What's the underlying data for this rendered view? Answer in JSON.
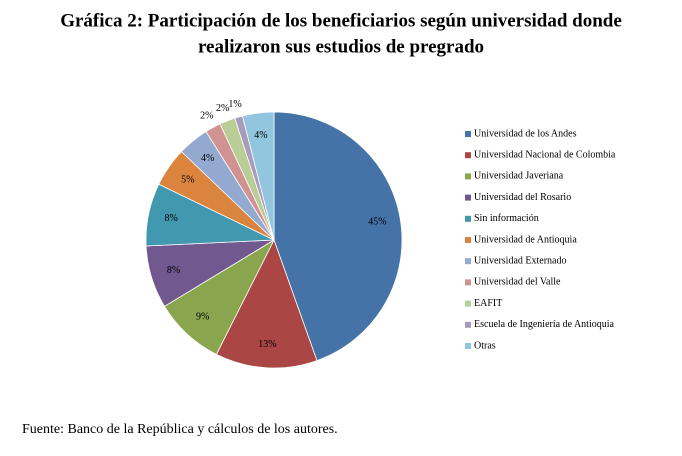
{
  "chart_data": {
    "type": "pie",
    "title": "Gráfica 2: Participación de los beneficiarios según universidad donde",
    "subtitle": "realizaron sus estudios de pregrado",
    "categories": [
      "Universidad de los Andes",
      "Universidad Nacional de Colombia",
      "Universidad Javeriana",
      "Universidad del Rosario",
      "Sin información",
      "Universidad de Antioquia",
      "Universidad Externado",
      "Universidad del Valle",
      "EAFIT",
      "Escuela de Ingeniería de Antioquia",
      "Otras"
    ],
    "values": [
      45,
      13,
      9,
      8,
      8,
      5,
      4,
      2,
      2,
      1,
      4
    ],
    "value_labels": [
      "45%",
      "13%",
      "9%",
      "8%",
      "8%",
      "5%",
      "4%",
      "2%",
      "2%",
      "1%",
      "4%"
    ],
    "colors": [
      "#4572A7",
      "#AA4643",
      "#89A54E",
      "#71588F",
      "#4198AF",
      "#DB843D",
      "#93A9CF",
      "#D19392",
      "#B9CD96",
      "#A99BBD",
      "#92C5DE"
    ],
    "legend": "right",
    "source": "Fuente: Banco de la República y cálculos de los autores."
  }
}
